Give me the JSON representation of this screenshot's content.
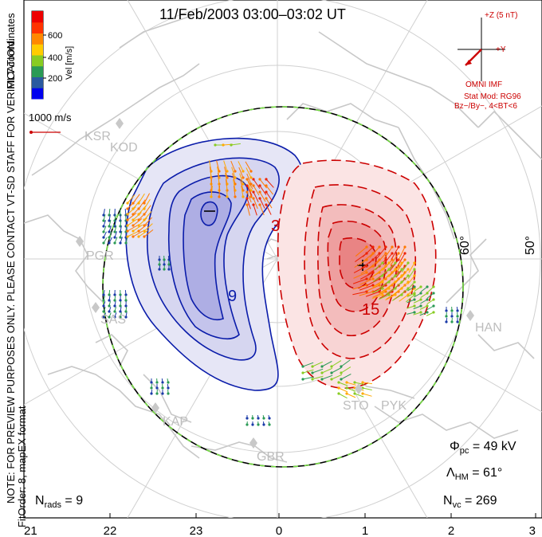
{
  "title": "11/Feb/2003 03:00–03:02 UT",
  "side_labels": {
    "coords": "MLT coordinates",
    "note": "NOTE: FOR PREVIEW PURPOSES ONLY. PLEASE CONTACT VT-SD STAFF FOR VERIFICATION.",
    "fit": "FitOrder: 8,  mapEX format"
  },
  "colorbar": {
    "label": "Vel [m/s]",
    "ticks": [
      "600",
      "400",
      "200"
    ],
    "colors": [
      "#0000ee",
      "#2a5aa0",
      "#2a9a55",
      "#88cc22",
      "#ffcc00",
      "#ff8800",
      "#ff3300",
      "#ee0000"
    ]
  },
  "vector_scale": "1000 m/s",
  "imf": {
    "z_label": "+Z (5 nT)",
    "y_label": "+Y",
    "omni": "OMNI IMF",
    "stat_mod": "Stat Mod: RG96",
    "bin": "Bz−/By−, 4<BT<6"
  },
  "stations": [
    "KSR",
    "KOD",
    "PGR",
    "SAS",
    "KAP",
    "GBR",
    "STO",
    "PYK",
    "HAN"
  ],
  "lat_labels": [
    "60°",
    "50°"
  ],
  "mlt_labels": [
    "21",
    "22",
    "23",
    "0",
    "1",
    "2",
    "3"
  ],
  "contour_labels": [
    "9",
    "3",
    "15"
  ],
  "stats": {
    "nrads_label": "N",
    "nrads_sub": "rads",
    "nrads_value": "9",
    "phi_label": "Φ",
    "phi_sub": "pc",
    "phi_value": "49 kV",
    "lambda_label": "Λ",
    "lambda_sub": "HM",
    "lambda_value": "61°",
    "nvc_label": "N",
    "nvc_sub": "vc",
    "nvc_value": "269"
  }
}
